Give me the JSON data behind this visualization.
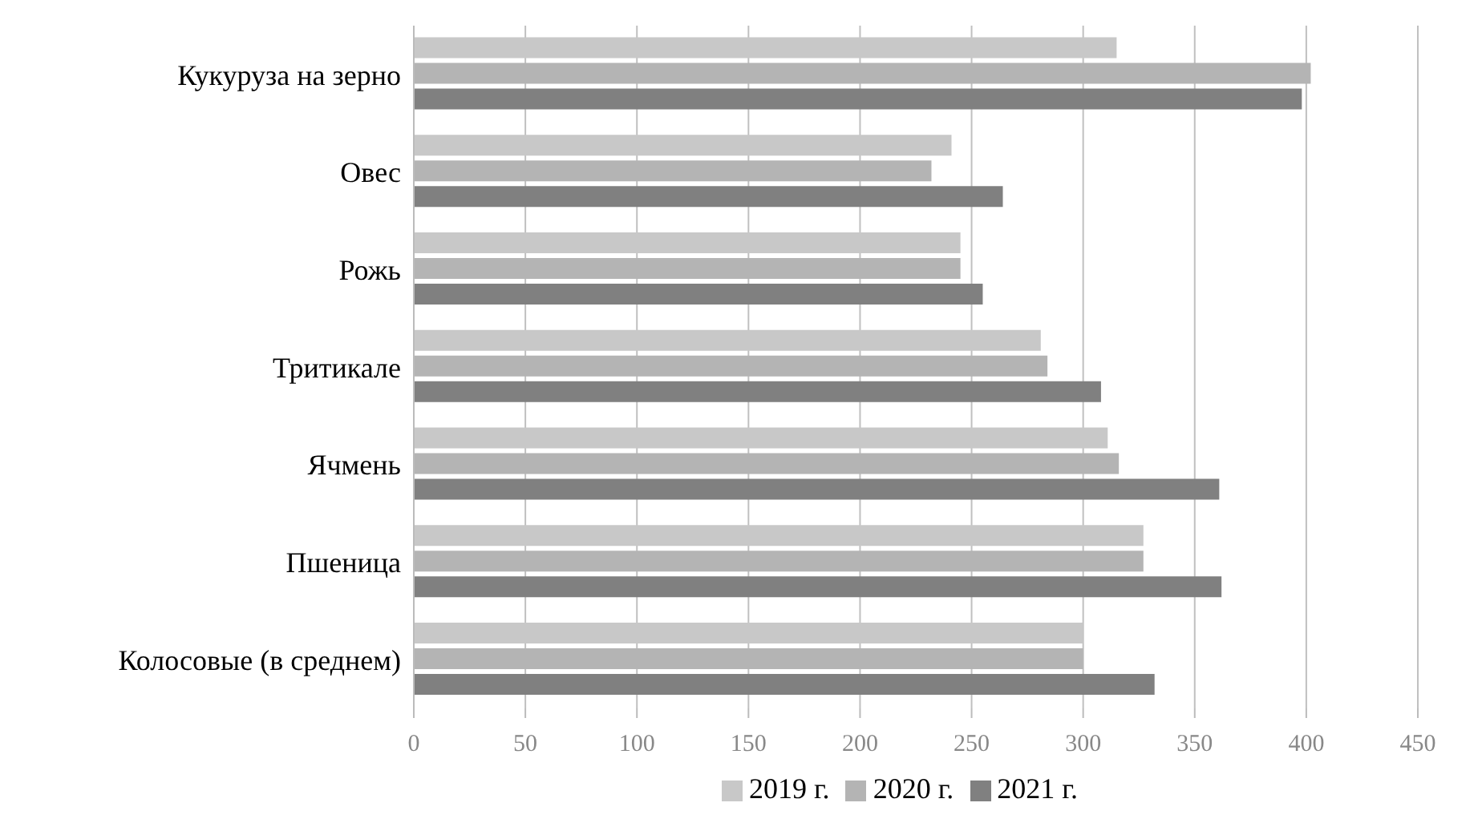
{
  "chart_data": {
    "type": "bar",
    "orientation": "horizontal",
    "categories": [
      "Кукуруза на зерно",
      "Овес",
      "Рожь",
      "Тритикале",
      "Ячмень",
      "Пшеница",
      "Колосовые (в среднем)"
    ],
    "series": [
      {
        "name": "2019 г.",
        "color": "#c8c8c8",
        "values": [
          315,
          241,
          245,
          281,
          311,
          327,
          300
        ]
      },
      {
        "name": "2020 г.",
        "color": "#b4b4b4",
        "values": [
          402,
          232,
          245,
          284,
          316,
          327,
          300
        ]
      },
      {
        "name": "2021 г.",
        "color": "#808080",
        "values": [
          398,
          264,
          255,
          308,
          361,
          362,
          332
        ]
      }
    ],
    "xlim": [
      0,
      450
    ],
    "xticks": [
      0,
      50,
      100,
      150,
      200,
      250,
      300,
      350,
      400,
      450
    ],
    "grid": "x",
    "legend": "bottom"
  }
}
